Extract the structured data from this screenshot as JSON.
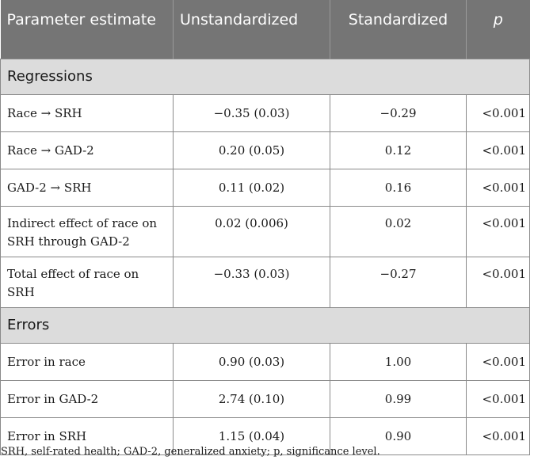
{
  "header": {
    "col1": "Parameter estimate",
    "col2": "Unstandardized",
    "col3": "Standardized",
    "col4": "p"
  },
  "sections": [
    {
      "title": "Regressions",
      "rows": [
        {
          "param": "Race → SRH",
          "unstd": "−0.35 (0.03)",
          "std": "−0.29",
          "p": "<0.001"
        },
        {
          "param": "Race → GAD-2",
          "unstd": "0.20 (0.05)",
          "std": "0.12",
          "p": "<0.001"
        },
        {
          "param": "GAD-2 → SRH",
          "unstd": "0.11 (0.02)",
          "std": "0.16",
          "p": "<0.001"
        },
        {
          "param_line1": "Indirect effect of race on",
          "param_line2": "SRH through GAD-2",
          "unstd": "0.02 (0.006)",
          "std": "0.02",
          "p": "<0.001"
        },
        {
          "param_line1": "Total effect of race on",
          "param_line2": "SRH",
          "unstd": "−0.33 (0.03)",
          "std": "−0.27",
          "p": "<0.001"
        }
      ]
    },
    {
      "title": "Errors",
      "rows": [
        {
          "param": "Error in race",
          "unstd": "0.90 (0.03)",
          "std": "1.00",
          "p": "<0.001"
        },
        {
          "param": "Error in GAD-2",
          "unstd": "2.74 (0.10)",
          "std": "0.99",
          "p": "<0.001"
        },
        {
          "param": "Error in SRH",
          "unstd": "1.15 (0.04)",
          "std": "0.90",
          "p": "<0.001"
        }
      ]
    }
  ],
  "footnote": "SRH, self-rated health; GAD-2, generalized anxiety; p, significance level."
}
